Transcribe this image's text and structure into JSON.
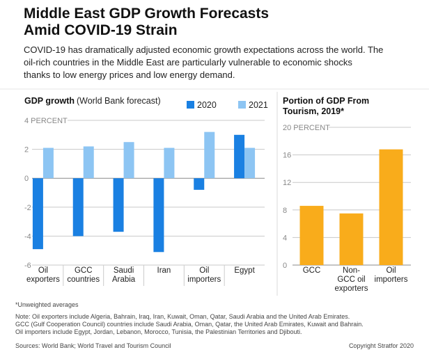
{
  "header": {
    "title": "Middle East GDP Growth Forecasts\nAmid COVID-19 Strain",
    "intro": "COVID-19 has dramatically adjusted economic growth expectations across the world. The\noil-rich countries in the Middle East are particularly vulnerable to economic shocks\nthanks to low energy prices and low energy demand."
  },
  "chart_data": [
    {
      "type": "bar",
      "title": "GDP growth",
      "subtitle": "(World Bank forecast)",
      "categories": [
        "Oil\nexporters",
        "GCC\ncountries",
        "Saudi\nArabia",
        "Iran",
        "Oil\nimporters",
        "Egypt"
      ],
      "series": [
        {
          "name": "2020",
          "color": "#1a80e2",
          "values": [
            -4.9,
            -4.0,
            -3.7,
            -5.1,
            -0.8,
            3.0
          ]
        },
        {
          "name": "2021",
          "color": "#8dc5f3",
          "values": [
            2.1,
            2.2,
            2.5,
            2.1,
            3.2,
            2.1
          ]
        }
      ],
      "ylim": [
        -6,
        4
      ],
      "yticks": [
        -6,
        -4,
        -2,
        0,
        2,
        {
          "value": 4,
          "label": "4 PERCENT"
        }
      ],
      "grid": true,
      "legend": "top-right"
    },
    {
      "type": "bar",
      "title": "Portion of GDP From\nTourism, 2019*",
      "categories": [
        "GCC",
        "Non-\nGCC oil\nexporters",
        "Oil\nimporters"
      ],
      "values": [
        8.6,
        7.5,
        16.8
      ],
      "color": "#f9ac1b",
      "ylim": [
        0,
        20
      ],
      "yticks": [
        0,
        4,
        8,
        12,
        16,
        {
          "value": 20,
          "label": "20 PERCENT"
        }
      ],
      "grid": true
    }
  ],
  "footer": {
    "footnote": "*Unweighted averages",
    "note": "Note: Oil exporters include Algeria, Bahrain, Iraq, Iran, Kuwait, Oman, Qatar, Saudi Arabia and the United Arab Emirates.\nGCC (Gulf Cooperation Council) countries include Saudi Arabia, Oman, Qatar, the United Arab Emirates, Kuwait and Bahrain.\nOil importers include Egypt, Jordan, Lebanon, Morocco, Tunisia, the Palestinian Territories and Djibouti.",
    "sources": "Sources: World Bank; World Travel and Tourism Council",
    "copyright": "Copyright Stratfor 2020"
  }
}
